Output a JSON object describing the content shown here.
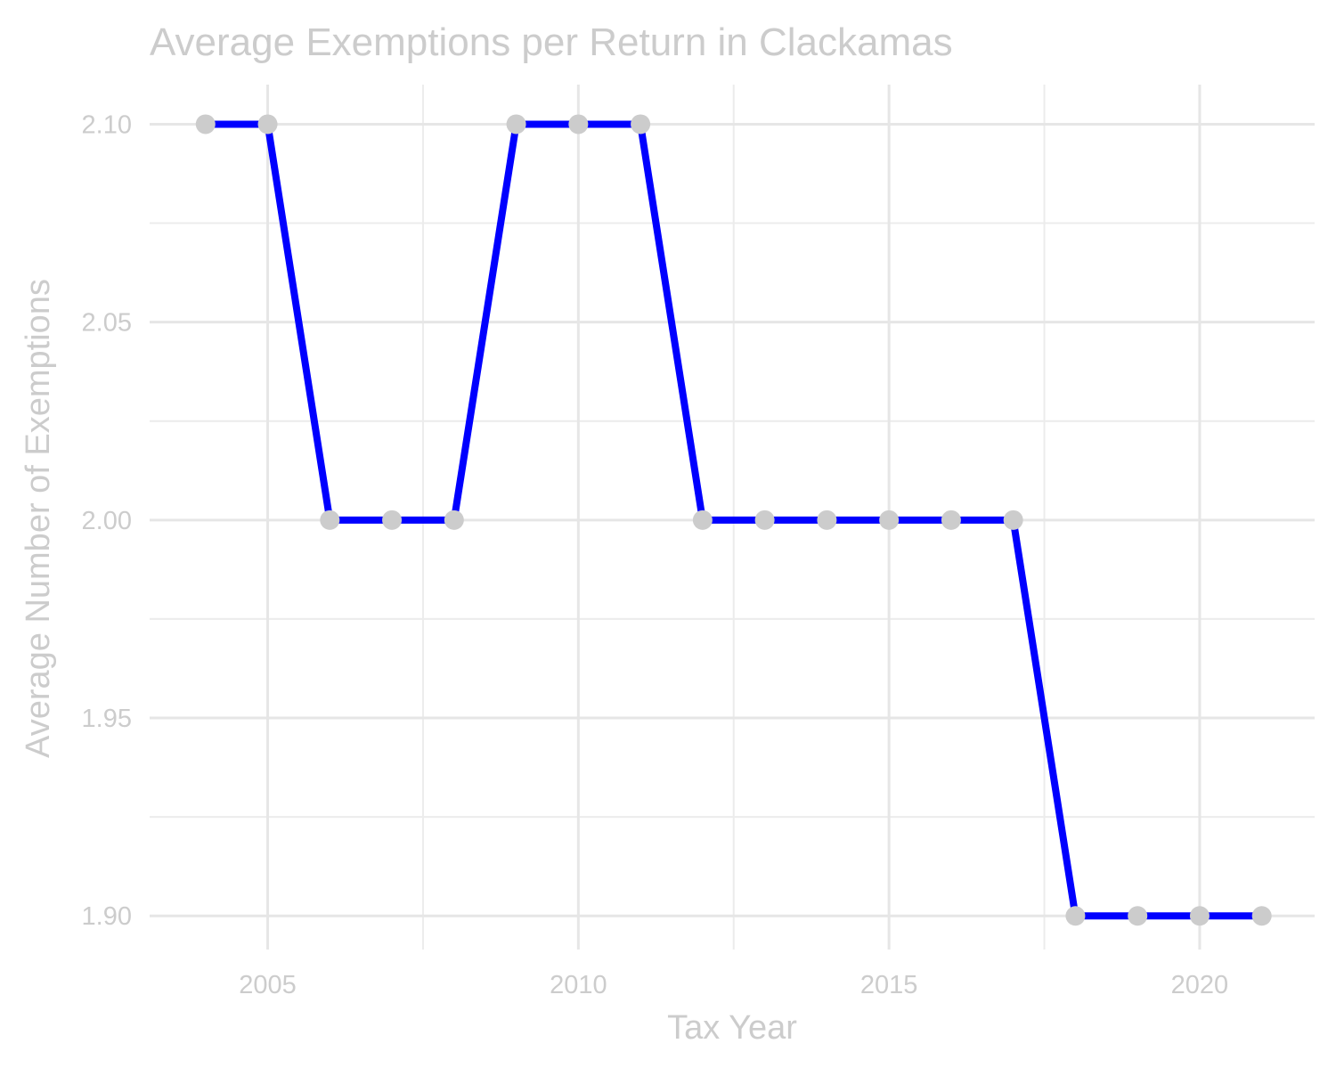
{
  "chart_data": {
    "type": "line",
    "title": "Average Exemptions per Return in Clackamas",
    "xlabel": "Tax Year",
    "ylabel": "Average Number of Exemptions",
    "x": [
      2004,
      2005,
      2006,
      2007,
      2008,
      2009,
      2010,
      2011,
      2012,
      2013,
      2014,
      2015,
      2016,
      2017,
      2018,
      2019,
      2020,
      2021
    ],
    "series": [
      {
        "values": [
          2.1,
          2.1,
          2.0,
          2.0,
          2.0,
          2.1,
          2.1,
          2.1,
          2.0,
          2.0,
          2.0,
          2.0,
          2.0,
          2.0,
          1.9,
          1.9,
          1.9,
          1.9
        ],
        "line_color": "#0000ff",
        "point_color": "#cccccc"
      }
    ],
    "xlim": [
      2003.1,
      2021.85
    ],
    "ylim": [
      1.8915,
      2.11
    ],
    "x_ticks": [
      2005,
      2010,
      2015,
      2020
    ],
    "x_tick_labels": [
      "2005",
      "2010",
      "2015",
      "2020"
    ],
    "x_minor_ticks": [
      2007.5,
      2012.5,
      2017.5
    ],
    "y_ticks": [
      1.9,
      1.95,
      2.0,
      2.05,
      2.1
    ],
    "y_tick_labels": [
      "1.90",
      "1.95",
      "2.00",
      "2.05",
      "2.10"
    ],
    "y_minor_ticks": [
      1.925,
      1.975,
      2.025,
      2.075
    ],
    "grid": true,
    "legend": "none"
  }
}
